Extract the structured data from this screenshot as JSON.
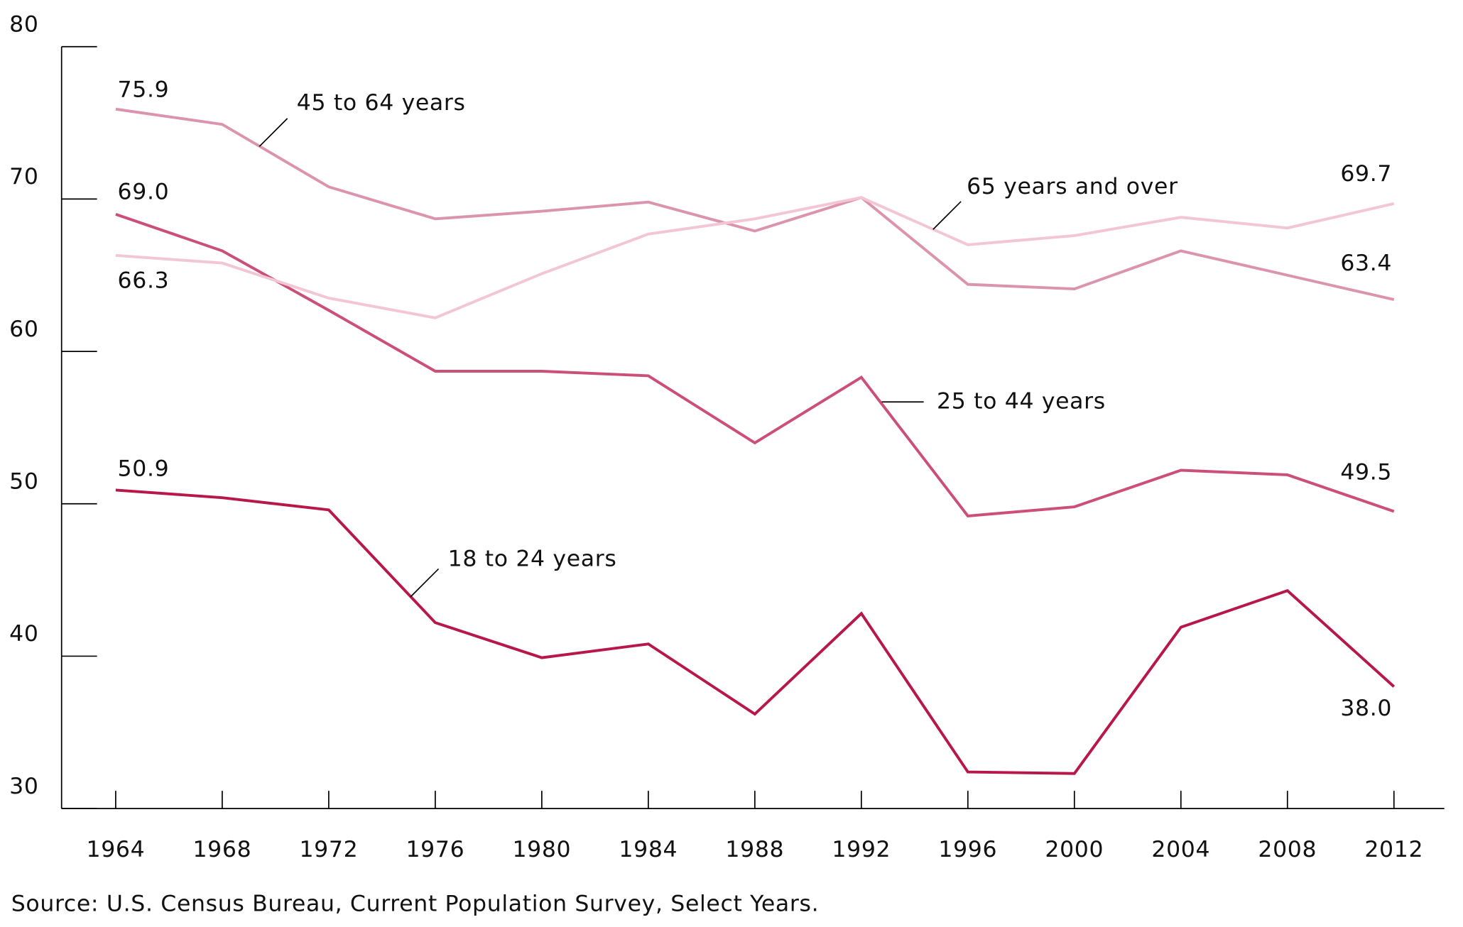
{
  "chart_data": {
    "type": "line",
    "x": [
      1964,
      1968,
      1972,
      1976,
      1980,
      1984,
      1988,
      1992,
      1996,
      2000,
      2004,
      2008,
      2012
    ],
    "xlim": [
      1964,
      2012
    ],
    "xticks": [
      1964,
      1968,
      1972,
      1976,
      1980,
      1984,
      1988,
      1992,
      1996,
      2000,
      2004,
      2008,
      2012
    ],
    "ylim": [
      30,
      80
    ],
    "yticks": [
      30,
      40,
      50,
      60,
      70,
      80
    ],
    "grid": false,
    "series": [
      {
        "name": "18 to 24 years",
        "color": "#b8174a",
        "values": [
          50.9,
          50.4,
          49.6,
          42.2,
          39.9,
          40.8,
          36.2,
          42.8,
          32.4,
          32.3,
          41.9,
          44.3,
          38.0
        ],
        "value_labels": [
          "50.9",
          null,
          null,
          null,
          null,
          null,
          null,
          null,
          null,
          null,
          null,
          null,
          "38.0"
        ]
      },
      {
        "name": "25 to 44 years",
        "color": "#cc4f78",
        "values": [
          69.0,
          66.6,
          62.7,
          58.7,
          58.7,
          58.4,
          54.0,
          58.3,
          49.2,
          49.8,
          52.2,
          51.9,
          49.5
        ],
        "value_labels": [
          "69.0",
          null,
          null,
          null,
          null,
          null,
          null,
          null,
          null,
          null,
          null,
          null,
          "49.5"
        ]
      },
      {
        "name": "45 to 64 years",
        "color": "#dc93ad",
        "values": [
          75.9,
          74.9,
          70.8,
          68.7,
          69.2,
          69.8,
          67.9,
          70.1,
          64.4,
          64.1,
          66.6,
          65.0,
          63.4
        ],
        "value_labels": [
          "75.9",
          null,
          null,
          null,
          null,
          null,
          null,
          null,
          null,
          null,
          null,
          null,
          "63.4"
        ]
      },
      {
        "name": "65 years and over",
        "color": "#f2c6d4",
        "values": [
          66.3,
          65.8,
          63.5,
          62.2,
          65.1,
          67.7,
          68.7,
          70.1,
          67.0,
          67.6,
          68.8,
          68.1,
          69.7
        ],
        "value_labels": [
          "66.3",
          null,
          null,
          null,
          null,
          null,
          null,
          null,
          null,
          null,
          null,
          null,
          "69.7"
        ]
      }
    ],
    "source": "Source: U.S. Census Bureau, Current Population Survey, Select Years."
  }
}
